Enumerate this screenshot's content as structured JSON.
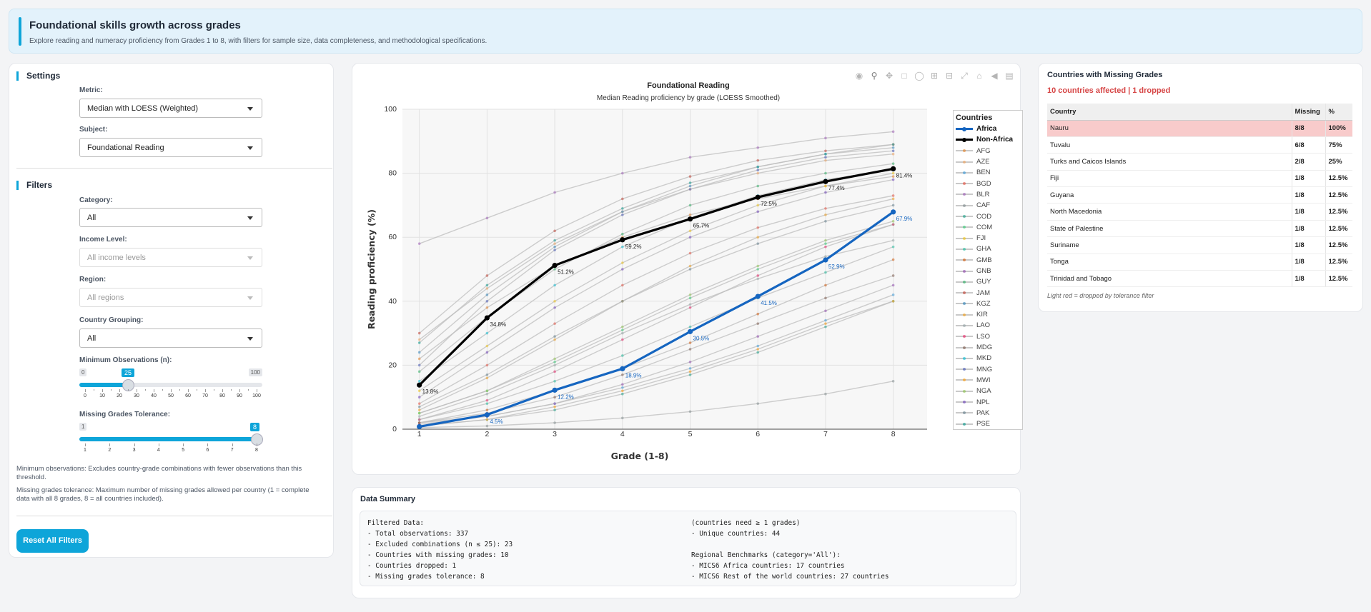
{
  "header": {
    "title": "Foundational skills growth across grades",
    "subtitle": "Explore reading and numeracy proficiency from Grades 1 to 8, with filters for sample size, data completeness, and methodological specifications."
  },
  "settings": {
    "section_title": "Settings",
    "metric_label": "Metric:",
    "metric_value": "Median with LOESS (Weighted)",
    "subject_label": "Subject:",
    "subject_value": "Foundational Reading"
  },
  "filters": {
    "section_title": "Filters",
    "category_label": "Category:",
    "category_value": "All",
    "income_label": "Income Level:",
    "income_placeholder": "All income levels",
    "region_label": "Region:",
    "region_placeholder": "All regions",
    "grouping_label": "Country Grouping:",
    "grouping_value": "All",
    "min_obs": {
      "label": "Minimum Observations (n):",
      "min": 0,
      "max": 100,
      "value": 25,
      "min_label": "0",
      "max_label": "100",
      "value_label": "25",
      "tick_labels": [
        "0",
        "10",
        "20",
        "30",
        "40",
        "50",
        "60",
        "70",
        "80",
        "90",
        "100"
      ]
    },
    "missing_tol": {
      "label": "Missing Grades Tolerance:",
      "min": 1,
      "max": 8,
      "value": 8,
      "min_label": "1",
      "value_label": "8",
      "tick_labels": [
        "1",
        "2",
        "3",
        "4",
        "5",
        "6",
        "7",
        "8"
      ]
    },
    "note_min_obs": "Minimum observations: Excludes country-grade combinations with fewer observations than this threshold.",
    "note_tolerance": "Missing grades tolerance: Maximum number of missing grades allowed per country (1 = complete data with all 8 grades, 8 = all countries included).",
    "reset_label": "Reset All Filters"
  },
  "toolbar": {
    "icons": [
      "camera-icon",
      "zoom-icon",
      "pan-icon",
      "box-select-icon",
      "lasso-icon",
      "zoom-in-icon",
      "zoom-out-icon",
      "autoscale-icon",
      "reset-axes-icon",
      "spike-lines-icon",
      "compare-hover-icon"
    ]
  },
  "chart_data": {
    "type": "line",
    "title": "Foundational Reading",
    "subtitle": "Median Reading proficiency by grade (LOESS Smoothed)",
    "xlabel": "Grade (1-8)",
    "ylabel": "Reading proficiency (%)",
    "x": [
      1,
      2,
      3,
      4,
      5,
      6,
      7,
      8
    ],
    "xlim": [
      0.75,
      8.5
    ],
    "ylim": [
      0,
      100
    ],
    "y_ticks": [
      0,
      20,
      40,
      60,
      80,
      100
    ],
    "grid": true,
    "legend_title": "Countries",
    "legend_position": "right",
    "series": [
      {
        "name": "Africa",
        "color": "#1565c0",
        "highlight": true,
        "values": [
          0.8,
          4.5,
          12.2,
          18.9,
          30.5,
          41.5,
          52.9,
          67.9
        ],
        "labels": [
          "",
          "4.5%",
          "12.2%",
          "18.9%",
          "30.5%",
          "41.5%",
          "52.9%",
          "67.9%"
        ]
      },
      {
        "name": "Non-Africa",
        "color": "#000000",
        "highlight": true,
        "values": [
          13.8,
          34.8,
          51.2,
          59.2,
          65.7,
          72.5,
          77.4,
          81.4
        ],
        "labels": [
          "13.8%",
          "34.8%",
          "51.2%",
          "59.2%",
          "65.7%",
          "72.5%",
          "77.4%",
          "81.4%"
        ]
      },
      {
        "name": "AFG",
        "color": "#e67e22",
        "values": [
          22,
          38,
          51,
          60,
          67,
          72,
          76,
          79
        ]
      },
      {
        "name": "AZE",
        "color": "#f0a05a",
        "values": [
          28,
          44,
          58,
          68,
          75,
          80,
          84,
          86
        ]
      },
      {
        "name": "BEN",
        "color": "#3498db",
        "values": [
          2,
          4,
          8,
          13,
          19,
          26,
          34,
          42
        ]
      },
      {
        "name": "BGD",
        "color": "#e74c3c",
        "values": [
          8,
          20,
          33,
          45,
          55,
          63,
          69,
          73
        ]
      },
      {
        "name": "BLR",
        "color": "#9b59b6",
        "values": [
          58,
          66,
          74,
          80,
          85,
          88,
          91,
          93
        ]
      },
      {
        "name": "CAF",
        "color": "#7f8c8d",
        "values": [
          0.5,
          1,
          2,
          3.5,
          5.5,
          8,
          11,
          15
        ]
      },
      {
        "name": "COD",
        "color": "#16a085",
        "values": [
          1,
          3,
          6,
          11,
          17,
          24,
          32,
          40
        ]
      },
      {
        "name": "COM",
        "color": "#2ecc71",
        "values": [
          5,
          12,
          21,
          31,
          41,
          50,
          58,
          64
        ]
      },
      {
        "name": "FJI",
        "color": "#f1c40f",
        "values": [
          12,
          26,
          40,
          52,
          62,
          70,
          76,
          80
        ]
      },
      {
        "name": "GHA",
        "color": "#1abc9c",
        "values": [
          3,
          8,
          15,
          23,
          32,
          41,
          49,
          57
        ]
      },
      {
        "name": "GMB",
        "color": "#d35400",
        "values": [
          2,
          6,
          12,
          19,
          27,
          36,
          45,
          53
        ]
      },
      {
        "name": "GNB",
        "color": "#8e44ad",
        "values": [
          1.5,
          4,
          8,
          14,
          21,
          29,
          37,
          45
        ]
      },
      {
        "name": "GUY",
        "color": "#27ae60",
        "values": [
          18,
          35,
          50,
          61,
          70,
          76,
          80,
          83
        ]
      },
      {
        "name": "JAM",
        "color": "#c0392b",
        "values": [
          30,
          48,
          62,
          72,
          79,
          84,
          87,
          89
        ]
      },
      {
        "name": "KGZ",
        "color": "#2980b9",
        "values": [
          24,
          42,
          57,
          68,
          76,
          82,
          86,
          88
        ]
      },
      {
        "name": "KIR",
        "color": "#f39c12",
        "values": [
          6,
          16,
          28,
          40,
          51,
          60,
          67,
          72
        ]
      },
      {
        "name": "LAO",
        "color": "#95a5a6",
        "values": [
          4,
          11,
          20,
          30,
          39,
          47,
          54,
          59
        ]
      },
      {
        "name": "LSO",
        "color": "#e91e63",
        "values": [
          3,
          9,
          18,
          28,
          38,
          48,
          57,
          64
        ]
      },
      {
        "name": "MDG",
        "color": "#795548",
        "values": [
          2,
          5,
          10,
          17,
          25,
          33,
          41,
          48
        ]
      },
      {
        "name": "MKD",
        "color": "#00bcd4",
        "values": [
          15,
          30,
          45,
          57,
          66,
          73,
          78,
          81
        ]
      },
      {
        "name": "MNG",
        "color": "#3f51b5",
        "values": [
          20,
          40,
          56,
          67,
          75,
          81,
          85,
          87
        ]
      },
      {
        "name": "MWI",
        "color": "#ff9800",
        "values": [
          1,
          3,
          7,
          12,
          18,
          25,
          33,
          40
        ]
      },
      {
        "name": "NGA",
        "color": "#8bc34a",
        "values": [
          5,
          12,
          22,
          32,
          42,
          51,
          59,
          65
        ]
      },
      {
        "name": "NPL",
        "color": "#673ab7",
        "values": [
          10,
          24,
          38,
          50,
          60,
          68,
          74,
          78
        ]
      },
      {
        "name": "PAK",
        "color": "#607d8b",
        "values": [
          7,
          17,
          29,
          40,
          50,
          58,
          65,
          70
        ]
      },
      {
        "name": "PSE",
        "color": "#009688",
        "values": [
          27,
          45,
          59,
          69,
          77,
          82,
          86,
          89
        ]
      }
    ]
  },
  "missing": {
    "title": "Countries with Missing Grades",
    "subtitle": "10 countries affected | 1 dropped",
    "columns": [
      "Country",
      "Missing",
      "%"
    ],
    "rows": [
      {
        "country": "Nauru",
        "missing": "8/8",
        "pct": "100%",
        "dropped": true
      },
      {
        "country": "Tuvalu",
        "missing": "6/8",
        "pct": "75%",
        "dropped": false
      },
      {
        "country": "Turks and Caicos Islands",
        "missing": "2/8",
        "pct": "25%",
        "dropped": false
      },
      {
        "country": "Fiji",
        "missing": "1/8",
        "pct": "12.5%",
        "dropped": false
      },
      {
        "country": "Guyana",
        "missing": "1/8",
        "pct": "12.5%",
        "dropped": false
      },
      {
        "country": "North Macedonia",
        "missing": "1/8",
        "pct": "12.5%",
        "dropped": false
      },
      {
        "country": "State of Palestine",
        "missing": "1/8",
        "pct": "12.5%",
        "dropped": false
      },
      {
        "country": "Suriname",
        "missing": "1/8",
        "pct": "12.5%",
        "dropped": false
      },
      {
        "country": "Tonga",
        "missing": "1/8",
        "pct": "12.5%",
        "dropped": false
      },
      {
        "country": "Trinidad and Tobago",
        "missing": "1/8",
        "pct": "12.5%",
        "dropped": false
      }
    ],
    "note": "Light red = dropped by tolerance filter"
  },
  "summary": {
    "title": "Data Summary",
    "left_lines": [
      "Filtered Data:",
      "- Total observations: 337",
      "- Excluded combinations (n ≤ 25): 23",
      "- Countries with missing grades: 10",
      "- Countries dropped: 1",
      "- Missing grades tolerance: 8"
    ],
    "right_lines": [
      "(countries need ≥ 1 grades)",
      "- Unique countries: 44",
      "",
      "Regional Benchmarks (category='All'):",
      "- MICS6 Africa countries: 17 countries",
      "- MICS6 Rest of the world countries: 27 countries"
    ]
  }
}
